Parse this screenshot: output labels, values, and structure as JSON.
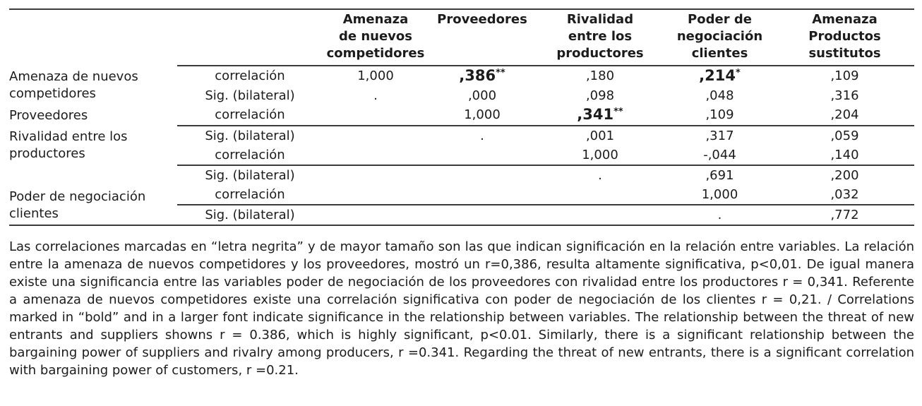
{
  "page": {
    "background": "#ffffff",
    "text_color": "#1c1c1c",
    "rule_color": "#3c3c3c"
  },
  "table": {
    "column_headers": [
      "Amenaza\nde nuevos\ncompetidores",
      "Proveedores",
      "Rivalidad\nentre los\nproductores",
      "Poder de\nnegociación\nclientes",
      "Amenaza\nProductos\nsustitutos"
    ],
    "rows": [
      {
        "label": "Amenaza de nuevos competidores",
        "stat": "correlación",
        "c1": "1,000",
        "c2": ",386",
        "c2sup": "**",
        "c3": ",180",
        "c4": ",214",
        "c4sup": "*",
        "c5": ",109"
      },
      {
        "stat": "Sig. (bilateral)",
        "c1": ".",
        "c2": ",000",
        "c3": ",098",
        "c4": ",048",
        "c5": ",316"
      },
      {
        "label": "Proveedores",
        "stat": "correlación",
        "c1": "",
        "c2": "1,000",
        "c3": ",341",
        "c3sup": "**",
        "c4": ",109",
        "c5": ",204"
      },
      {
        "label": "Rivalidad entre los productores",
        "stat": "Sig. (bilateral)",
        "c1": "",
        "c2": ".",
        "c3": ",001",
        "c4": ",317",
        "c5": ",059"
      },
      {
        "stat": "correlación",
        "c1": "",
        "c2": "",
        "c3": "1,000",
        "c4": "-,044",
        "c5": ",140"
      },
      {
        "label": "Poder de negociación clientes",
        "stat": "Sig. (bilateral)",
        "c1": "",
        "c2": "",
        "c3": ".",
        "c4": ",691",
        "c5": ",200"
      },
      {
        "stat": "correlación",
        "c1": "",
        "c2": "",
        "c3": "",
        "c4": "1,000",
        "c5": ",032"
      },
      {
        "stat": "Sig. (bilateral)",
        "c1": "",
        "c2": "",
        "c3": "",
        "c4": ".",
        "c5": ",772"
      }
    ]
  },
  "caption": {
    "text": "Las correlaciones marcadas en “letra negrita” y de mayor tamaño son las que indican significación en la relación entre variables. La relación entre la amenaza de nuevos competidores y los proveedores, mostró un r=0,386, resulta altamente significativa, p<0,01. De igual manera existe una significancia entre las variables poder de negociación de los proveedores con rivalidad entre los productores r = 0,341. Referente a amenaza de nuevos competidores existe una correlación significativa con poder de negociación de los clientes r = 0,21. / Correlations marked in “bold” and in a larger font indicate significance in the relationship between variables. The relationship between the threat of new entrants and suppliers showns r = 0.386, which is highly significant, p<0.01. Similarly, there is a significant relationship between the bargaining power of suppliers and rivalry among producers, r =0.341. Regarding the threat of new entrants, there is a significant correlation with bargaining power of customers, r =0.21."
  }
}
